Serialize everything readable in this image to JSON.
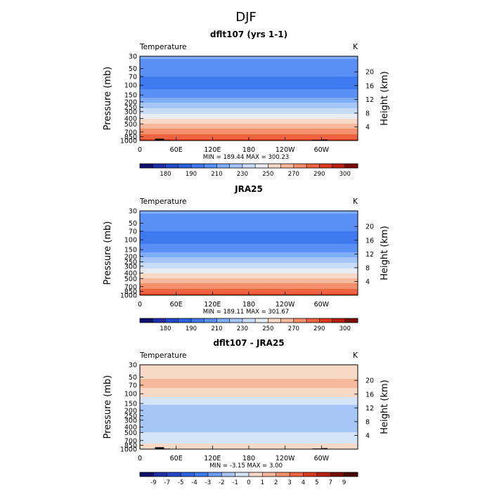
{
  "figure": {
    "title": "DJF"
  },
  "chart_data": [
    {
      "type": "heatmap",
      "title": "dflt107 (yrs 1-1)",
      "field_label": "Temperature",
      "units": "K",
      "ylabel": "Pressure (mb)",
      "y2label": "Height (km)",
      "x_ticks": [
        "0",
        "60E",
        "120E",
        "180",
        "120W",
        "60W"
      ],
      "x_range": [
        0,
        360
      ],
      "y_ticks": [
        30,
        50,
        70,
        100,
        150,
        200,
        250,
        300,
        400,
        500,
        700,
        850,
        1000
      ],
      "y_range": [
        30,
        1000
      ],
      "y2_ticks": [
        4,
        8,
        12,
        16,
        20
      ],
      "stats": "MIN = 189.44   MAX = 300.23",
      "colorbar": {
        "levels": [
          175,
          180,
          185,
          190,
          200,
          210,
          220,
          230,
          240,
          250,
          260,
          270,
          280,
          290,
          295,
          300
        ],
        "labels": [
          "180",
          "190",
          "210",
          "230",
          "250",
          "270",
          "290",
          "300"
        ],
        "colors": [
          "#10106e",
          "#1c2fa8",
          "#2449c8",
          "#2c62e0",
          "#3f79f0",
          "#5a90f5",
          "#80adf7",
          "#a6c6f8",
          "#c8dbf7",
          "#e9ecf2",
          "#f8d9c8",
          "#f7b99c",
          "#f48f6c",
          "#ee6441",
          "#dc3a1c",
          "#b8200e",
          "#7a0c05"
        ]
      },
      "profile": [
        {
          "p": 30,
          "t": 212
        },
        {
          "p": 45,
          "t": 205
        },
        {
          "p": 70,
          "t": 200
        },
        {
          "p": 100,
          "t": 196
        },
        {
          "p": 150,
          "t": 205
        },
        {
          "p": 200,
          "t": 218
        },
        {
          "p": 250,
          "t": 228
        },
        {
          "p": 300,
          "t": 236
        },
        {
          "p": 400,
          "t": 250
        },
        {
          "p": 500,
          "t": 261
        },
        {
          "p": 600,
          "t": 270
        },
        {
          "p": 700,
          "t": 276
        },
        {
          "p": 850,
          "t": 284
        },
        {
          "p": 1000,
          "t": 293
        }
      ],
      "topography": [
        [
          25,
          40,
          925
        ],
        [
          35,
          50,
          980
        ],
        [
          285,
          300,
          975
        ],
        [
          300,
          310,
          960
        ]
      ]
    },
    {
      "type": "heatmap",
      "title": "JRA25",
      "field_label": "Temperature",
      "units": "K",
      "ylabel": "Pressure (mb)",
      "y2label": "Height (km)",
      "x_ticks": [
        "0",
        "60E",
        "120E",
        "180",
        "120W",
        "60W"
      ],
      "x_range": [
        0,
        360
      ],
      "y_ticks": [
        30,
        50,
        70,
        100,
        150,
        200,
        250,
        300,
        400,
        500,
        700,
        850,
        1000
      ],
      "y_range": [
        30,
        1000
      ],
      "y2_ticks": [
        4,
        8,
        12,
        16,
        20
      ],
      "stats": "MIN = 189.11   MAX = 301.67",
      "colorbar": {
        "levels": [
          175,
          180,
          185,
          190,
          200,
          210,
          220,
          230,
          240,
          250,
          260,
          270,
          280,
          290,
          295,
          300
        ],
        "labels": [
          "180",
          "190",
          "210",
          "230",
          "250",
          "270",
          "290",
          "300"
        ],
        "colors": [
          "#10106e",
          "#1c2fa8",
          "#2449c8",
          "#2c62e0",
          "#3f79f0",
          "#5a90f5",
          "#80adf7",
          "#a6c6f8",
          "#c8dbf7",
          "#e9ecf2",
          "#f8d9c8",
          "#f7b99c",
          "#f48f6c",
          "#ee6441",
          "#dc3a1c",
          "#b8200e",
          "#7a0c05"
        ]
      },
      "profile": [
        {
          "p": 30,
          "t": 212
        },
        {
          "p": 45,
          "t": 205
        },
        {
          "p": 70,
          "t": 200
        },
        {
          "p": 100,
          "t": 196
        },
        {
          "p": 150,
          "t": 205
        },
        {
          "p": 200,
          "t": 218
        },
        {
          "p": 250,
          "t": 228
        },
        {
          "p": 300,
          "t": 236
        },
        {
          "p": 400,
          "t": 250
        },
        {
          "p": 500,
          "t": 261
        },
        {
          "p": 600,
          "t": 270
        },
        {
          "p": 700,
          "t": 276
        },
        {
          "p": 850,
          "t": 284
        },
        {
          "p": 1000,
          "t": 294
        }
      ],
      "topography": []
    },
    {
      "type": "heatmap",
      "title": "dflt107 - JRA25",
      "field_label": "Temperature",
      "units": "K",
      "ylabel": "Pressure (mb)",
      "y2label": "Height (km)",
      "x_ticks": [
        "0",
        "60E",
        "120E",
        "180",
        "120W",
        "60W"
      ],
      "x_range": [
        0,
        360
      ],
      "y_ticks": [
        30,
        50,
        70,
        100,
        150,
        200,
        250,
        300,
        400,
        500,
        700,
        850,
        1000
      ],
      "y_range": [
        30,
        1000
      ],
      "y2_ticks": [
        4,
        8,
        12,
        16,
        20
      ],
      "stats": "MIN =   -3.15   MAX =    3.00",
      "colorbar": {
        "levels": [
          -9,
          -7,
          -5,
          -4,
          -3,
          -2,
          -1,
          0,
          1,
          2,
          3,
          4,
          5,
          7,
          9
        ],
        "labels": [
          "-9",
          "-7",
          "-5",
          "-4",
          "-3",
          "-2",
          "-1",
          "0",
          "1",
          "2",
          "3",
          "4",
          "5",
          "7",
          "9"
        ],
        "colors": [
          "#10106e",
          "#1c2fa8",
          "#2449c8",
          "#2c62e0",
          "#3f79f0",
          "#6a9cf4",
          "#a6c6f8",
          "#d4e3f7",
          "#f8d9c8",
          "#f7b99c",
          "#f48f6c",
          "#ee6441",
          "#dc3a1c",
          "#b8200e",
          "#7a0c05",
          "#4a0703"
        ]
      },
      "profile": [
        {
          "p": 30,
          "t": 0.5
        },
        {
          "p": 45,
          "t": 0.6
        },
        {
          "p": 60,
          "t": 1.3
        },
        {
          "p": 75,
          "t": 1.1
        },
        {
          "p": 100,
          "t": 0.5
        },
        {
          "p": 130,
          "t": -0.4
        },
        {
          "p": 170,
          "t": -1.2
        },
        {
          "p": 250,
          "t": -1.5
        },
        {
          "p": 320,
          "t": -1.6
        },
        {
          "p": 450,
          "t": -1.2
        },
        {
          "p": 600,
          "t": -0.6
        },
        {
          "p": 750,
          "t": -0.2
        },
        {
          "p": 850,
          "t": 0.3
        },
        {
          "p": 1000,
          "t": 0.4
        }
      ],
      "topography": [
        [
          25,
          40,
          925
        ],
        [
          35,
          50,
          980
        ],
        [
          285,
          300,
          975
        ],
        [
          300,
          310,
          960
        ]
      ]
    }
  ]
}
